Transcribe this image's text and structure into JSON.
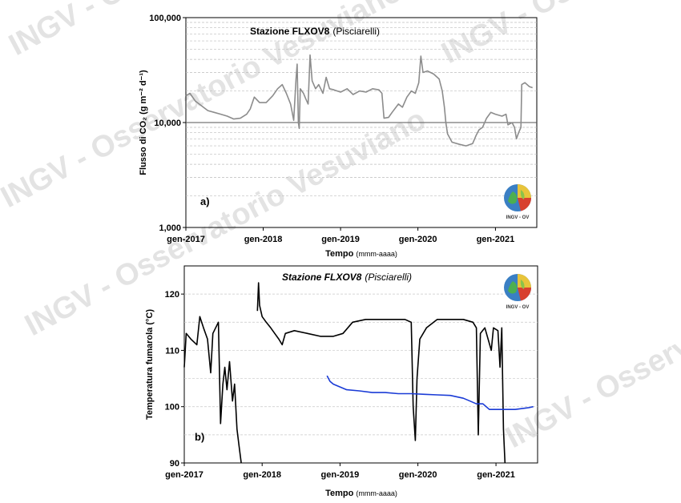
{
  "watermark": {
    "texts": [
      "INGV - Osservatorio Vesuviano",
      "INGV - Osservatorio Vesuviano",
      "INGV - Osservatorio Vesuviano",
      "INGV - Osservatorio Vesuviano",
      "INGV - Osservatorio Vesuviano"
    ],
    "color": "#e3e3e3"
  },
  "logo_text": "INGV - OV",
  "chart_data": [
    {
      "type": "line",
      "panel_label": "a)",
      "station_title": "Stazione FLXOV8",
      "station_subtitle": "(Pisciarelli)",
      "ylabel": "Flusso di CO₂ (g m⁻² d⁻¹)",
      "xlabel": "Tempo",
      "xlabel_unit": "(mmm-aaaa)",
      "yscale": "log",
      "ylim": [
        1000,
        100000
      ],
      "xlim": [
        "2017-01-01",
        "2021-07-15"
      ],
      "yticks": [
        1000,
        10000,
        100000
      ],
      "ytick_labels": [
        "1,000",
        "10,000",
        "100,000"
      ],
      "xticks": [
        "2017-01-01",
        "2018-01-01",
        "2019-01-01",
        "2020-01-01",
        "2021-01-01"
      ],
      "xtick_labels": [
        "gen-2017",
        "gen-2018",
        "gen-2019",
        "gen-2020",
        "gen-2021"
      ],
      "grid": "horizontal dashed",
      "series": [
        {
          "color": "#8c8c8c",
          "points": [
            [
              "2017-01-01",
              18000
            ],
            [
              "2017-01-20",
              19000
            ],
            [
              "2017-02-15",
              16000
            ],
            [
              "2017-03-15",
              14500
            ],
            [
              "2017-04-15",
              13000
            ],
            [
              "2017-05-15",
              12500
            ],
            [
              "2017-06-15",
              12000
            ],
            [
              "2017-07-15",
              11500
            ],
            [
              "2017-08-15",
              10800
            ],
            [
              "2017-09-15",
              11000
            ],
            [
              "2017-10-15",
              12000
            ],
            [
              "2017-11-01",
              13500
            ],
            [
              "2017-11-20",
              17500
            ],
            [
              "2017-12-15",
              15500
            ],
            [
              "2018-01-15",
              15500
            ],
            [
              "2018-02-15",
              18000
            ],
            [
              "2018-03-10",
              21000
            ],
            [
              "2018-04-01",
              23000
            ],
            [
              "2018-04-20",
              19000
            ],
            [
              "2018-05-10",
              15000
            ],
            [
              "2018-05-25",
              10500
            ],
            [
              "2018-06-05",
              26000
            ],
            [
              "2018-06-10",
              36000
            ],
            [
              "2018-06-16",
              10000
            ],
            [
              "2018-06-20",
              8800
            ],
            [
              "2018-06-25",
              21000
            ],
            [
              "2018-07-10",
              19000
            ],
            [
              "2018-07-20",
              17000
            ],
            [
              "2018-08-01",
              15000
            ],
            [
              "2018-08-10",
              44000
            ],
            [
              "2018-08-20",
              25000
            ],
            [
              "2018-09-05",
              21000
            ],
            [
              "2018-09-20",
              23000
            ],
            [
              "2018-10-10",
              19000
            ],
            [
              "2018-10-25",
              27000
            ],
            [
              "2018-11-10",
              21000
            ],
            [
              "2018-12-01",
              20500
            ],
            [
              "2019-01-01",
              19500
            ],
            [
              "2019-02-01",
              21000
            ],
            [
              "2019-03-01",
              18500
            ],
            [
              "2019-04-01",
              20000
            ],
            [
              "2019-05-01",
              19500
            ],
            [
              "2019-06-01",
              21000
            ],
            [
              "2019-07-01",
              20500
            ],
            [
              "2019-07-15",
              19000
            ],
            [
              "2019-07-25",
              11000
            ],
            [
              "2019-08-15",
              11200
            ],
            [
              "2019-09-01",
              12500
            ],
            [
              "2019-10-01",
              15000
            ],
            [
              "2019-10-20",
              14000
            ],
            [
              "2019-11-10",
              17500
            ],
            [
              "2019-12-01",
              20000
            ],
            [
              "2019-12-20",
              19000
            ],
            [
              "2020-01-05",
              24000
            ],
            [
              "2020-01-15",
              43000
            ],
            [
              "2020-01-25",
              30000
            ],
            [
              "2020-02-15",
              31000
            ],
            [
              "2020-03-15",
              29000
            ],
            [
              "2020-04-10",
              26000
            ],
            [
              "2020-04-25",
              20000
            ],
            [
              "2020-05-05",
              14000
            ],
            [
              "2020-05-12",
              10000
            ],
            [
              "2020-05-20",
              7800
            ],
            [
              "2020-06-10",
              6500
            ],
            [
              "2020-07-15",
              6200
            ],
            [
              "2020-08-15",
              6000
            ],
            [
              "2020-09-15",
              6300
            ],
            [
              "2020-10-01",
              7500
            ],
            [
              "2020-10-15",
              8500
            ],
            [
              "2020-11-01",
              9000
            ],
            [
              "2020-11-20",
              11000
            ],
            [
              "2020-12-10",
              12500
            ],
            [
              "2021-01-01",
              12000
            ],
            [
              "2021-02-01",
              11500
            ],
            [
              "2021-02-20",
              12000
            ],
            [
              "2021-03-01",
              9500
            ],
            [
              "2021-03-20",
              10000
            ],
            [
              "2021-04-01",
              9000
            ],
            [
              "2021-04-10",
              7000
            ],
            [
              "2021-04-20",
              8000
            ],
            [
              "2021-05-01",
              9000
            ],
            [
              "2021-05-05",
              23000
            ],
            [
              "2021-05-20",
              24000
            ],
            [
              "2021-06-10",
              22000
            ],
            [
              "2021-06-25",
              21500
            ]
          ]
        }
      ]
    },
    {
      "type": "line",
      "panel_label": "b)",
      "station_title": "Stazione FLXOV8",
      "station_subtitle": "(Pisciarelli)",
      "ylabel": "Temperatura fumarola  (°C)",
      "xlabel": "Tempo",
      "xlabel_unit": "(mmm-aaaa)",
      "ylim": [
        90,
        125
      ],
      "xlim": [
        "2017-01-01",
        "2021-07-15"
      ],
      "yticks": [
        90,
        100,
        110,
        120
      ],
      "ytick_labels": [
        "90",
        "100",
        "110",
        "120"
      ],
      "xticks": [
        "2017-01-01",
        "2018-01-01",
        "2019-01-01",
        "2020-01-01",
        "2021-01-01"
      ],
      "xtick_labels": [
        "gen-2017",
        "gen-2018",
        "gen-2019",
        "gen-2020",
        "gen-2021"
      ],
      "grid": "horizontal dashed",
      "series": [
        {
          "color": "#000000",
          "segments": [
            [
              [
                "2017-01-01",
                107
              ],
              [
                "2017-01-10",
                113
              ],
              [
                "2017-02-01",
                112
              ],
              [
                "2017-03-01",
                111
              ],
              [
                "2017-03-15",
                116
              ],
              [
                "2017-04-01",
                114
              ],
              [
                "2017-04-20",
                112
              ],
              [
                "2017-05-05",
                106
              ],
              [
                "2017-05-15",
                113
              ],
              [
                "2017-06-10",
                115
              ],
              [
                "2017-06-20",
                97
              ],
              [
                "2017-07-01",
                104
              ],
              [
                "2017-07-10",
                107
              ],
              [
                "2017-07-20",
                103
              ],
              [
                "2017-08-01",
                108
              ],
              [
                "2017-08-15",
                101
              ],
              [
                "2017-08-25",
                104
              ],
              [
                "2017-09-05",
                96
              ],
              [
                "2017-09-15",
                93
              ],
              [
                "2017-09-25",
                90
              ]
            ],
            [
              [
                "2017-12-10",
                117
              ],
              [
                "2017-12-15",
                122
              ],
              [
                "2017-12-20",
                118
              ],
              [
                "2018-01-01",
                116
              ],
              [
                "2018-01-20",
                115
              ],
              [
                "2018-02-10",
                114
              ],
              [
                "2018-03-01",
                113
              ],
              [
                "2018-03-20",
                112
              ],
              [
                "2018-04-05",
                111
              ],
              [
                "2018-04-20",
                113
              ],
              [
                "2018-06-01",
                113.5
              ],
              [
                "2018-08-01",
                113
              ],
              [
                "2018-10-01",
                112.5
              ],
              [
                "2018-12-01",
                112.5
              ],
              [
                "2019-01-15",
                113
              ],
              [
                "2019-03-01",
                115
              ],
              [
                "2019-05-01",
                115.5
              ],
              [
                "2019-07-01",
                115.5
              ],
              [
                "2019-09-01",
                115.5
              ],
              [
                "2019-11-01",
                115.5
              ],
              [
                "2019-12-01",
                115
              ],
              [
                "2019-12-10",
                100
              ],
              [
                "2019-12-20",
                94
              ],
              [
                "2019-12-28",
                105
              ],
              [
                "2020-01-10",
                112
              ],
              [
                "2020-02-10",
                114
              ],
              [
                "2020-04-01",
                115.5
              ],
              [
                "2020-06-01",
                115.5
              ],
              [
                "2020-08-01",
                115.5
              ],
              [
                "2020-09-15",
                115
              ],
              [
                "2020-10-01",
                114
              ],
              [
                "2020-10-10",
                95
              ],
              [
                "2020-10-20",
                113
              ],
              [
                "2020-11-10",
                114
              ],
              [
                "2020-12-10",
                110
              ],
              [
                "2020-12-20",
                114
              ],
              [
                "2021-01-10",
                113.5
              ],
              [
                "2021-01-20",
                107
              ],
              [
                "2021-01-28",
                114
              ],
              [
                "2021-02-05",
                96
              ],
              [
                "2021-02-12",
                90
              ]
            ]
          ]
        },
        {
          "color": "#1a3bd6",
          "segments": [
            [
              [
                "2018-11-01",
                105.5
              ],
              [
                "2018-11-15",
                104.5
              ],
              [
                "2018-12-01",
                104
              ],
              [
                "2019-01-01",
                103.5
              ],
              [
                "2019-02-01",
                103
              ],
              [
                "2019-04-01",
                102.8
              ],
              [
                "2019-06-01",
                102.5
              ],
              [
                "2019-08-01",
                102.5
              ],
              [
                "2019-10-01",
                102.3
              ],
              [
                "2019-12-01",
                102.3
              ],
              [
                "2020-02-01",
                102.2
              ],
              [
                "2020-04-01",
                102.1
              ],
              [
                "2020-06-01",
                102
              ],
              [
                "2020-08-01",
                101.5
              ],
              [
                "2020-09-01",
                101
              ],
              [
                "2020-10-01",
                100.5
              ],
              [
                "2020-11-01",
                100.5
              ],
              [
                "2020-12-01",
                99.5
              ],
              [
                "2021-02-01",
                99.5
              ],
              [
                "2021-04-01",
                99.5
              ],
              [
                "2021-06-01",
                99.8
              ],
              [
                "2021-06-25",
                100
              ]
            ]
          ]
        }
      ]
    }
  ]
}
